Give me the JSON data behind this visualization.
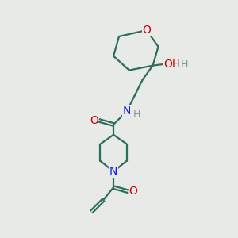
{
  "bg_color": "#e8eae8",
  "bond_color": "#2d6e5b",
  "O_color": "#cc0000",
  "N_color": "#1a1aee",
  "H_color": "#7a9999",
  "line_width": 1.6,
  "figsize": [
    3.0,
    3.0
  ],
  "dpi": 100,
  "xlim": [
    0,
    300
  ],
  "ylim": [
    0,
    300
  ]
}
